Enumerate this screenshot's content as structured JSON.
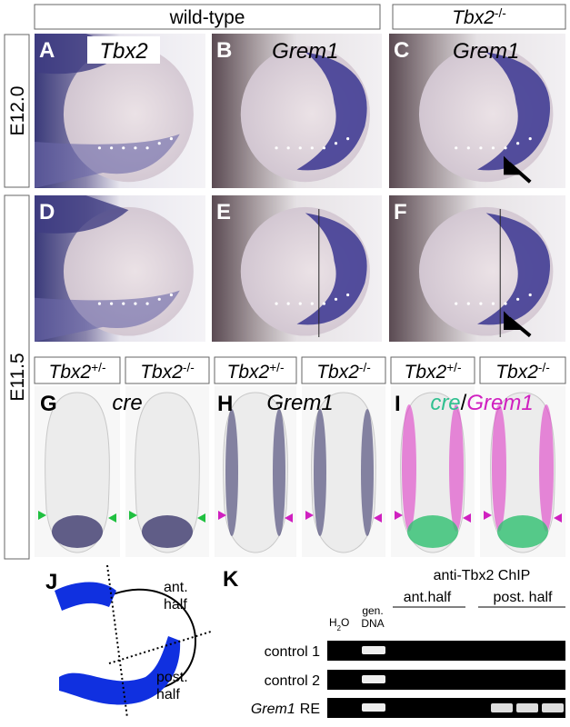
{
  "header": {
    "wild_type": "wild-type",
    "mutant": {
      "base": "Tbx2",
      "sup": "-/-"
    }
  },
  "stages": [
    "E12.0",
    "E11.5"
  ],
  "panels": [
    {
      "letter": "A",
      "gene": "Tbx2"
    },
    {
      "letter": "B",
      "gene": "Grem1"
    },
    {
      "letter": "C",
      "gene": "Grem1"
    },
    {
      "letter": "D"
    },
    {
      "letter": "E"
    },
    {
      "letter": "F"
    },
    {
      "letter": "G",
      "gene": "cre"
    },
    {
      "letter": "H",
      "gene": "Grem1"
    },
    {
      "letter": "I",
      "gene": "cre",
      "sep": "/",
      "gene2": "Grem1"
    }
  ],
  "genotypes": [
    {
      "base": "Tbx2",
      "sup": "+/-"
    },
    {
      "base": "Tbx2",
      "sup": "-/-"
    },
    {
      "base": "Tbx2",
      "sup": "+/-"
    },
    {
      "base": "Tbx2",
      "sup": "-/-"
    },
    {
      "base": "Tbx2",
      "sup": "+/-"
    },
    {
      "base": "Tbx2",
      "sup": "-/-"
    }
  ],
  "panel_j": {
    "letter": "J",
    "ant": [
      "ant.",
      "half"
    ],
    "post": [
      "post.",
      "half"
    ]
  },
  "panel_k": {
    "letter": "K",
    "h2o": {
      "base": "H",
      "sub": "2",
      "tail": "O"
    },
    "gen_dna": [
      "gen.",
      "DNA"
    ],
    "chip": "anti-Tbx2 ChIP",
    "groups": [
      "ant.half",
      "post. half"
    ],
    "rows": [
      "control 1",
      "control 2"
    ],
    "gene_row": {
      "gene": "Grem1",
      "rest": "RE"
    }
  }
}
